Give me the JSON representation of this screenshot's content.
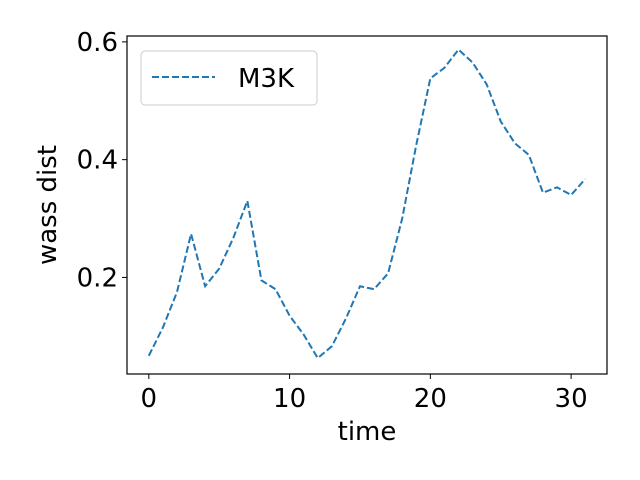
{
  "chart_data": {
    "type": "line",
    "xlabel": "time",
    "ylabel": "wass dist",
    "xlim": [
      -1.55,
      32.55
    ],
    "ylim": [
      0.036,
      0.61
    ],
    "xticks": [
      0,
      10,
      20,
      30
    ],
    "yticks": [
      0.2,
      0.4,
      0.6
    ],
    "xtick_labels": [
      "0",
      "10",
      "20",
      "30"
    ],
    "ytick_labels": [
      "0.2",
      "0.4",
      "0.6"
    ],
    "grid": false,
    "legend_position": "top-left",
    "series": [
      {
        "name": "M3K",
        "color": "#1f77b4",
        "line_style": "dashed",
        "x": [
          0,
          1,
          2,
          3,
          4,
          5,
          6,
          7,
          8,
          9,
          10,
          11,
          12,
          13,
          14,
          15,
          16,
          17,
          18,
          19,
          20,
          21,
          22,
          23,
          24,
          25,
          26,
          27,
          28,
          29,
          30,
          31
        ],
        "y": [
          0.067,
          0.115,
          0.175,
          0.274,
          0.185,
          0.215,
          0.267,
          0.33,
          0.195,
          0.18,
          0.135,
          0.103,
          0.063,
          0.083,
          0.13,
          0.185,
          0.18,
          0.207,
          0.3,
          0.425,
          0.538,
          0.556,
          0.587,
          0.565,
          0.528,
          0.465,
          0.428,
          0.408,
          0.344,
          0.353,
          0.34,
          0.367
        ]
      }
    ]
  }
}
